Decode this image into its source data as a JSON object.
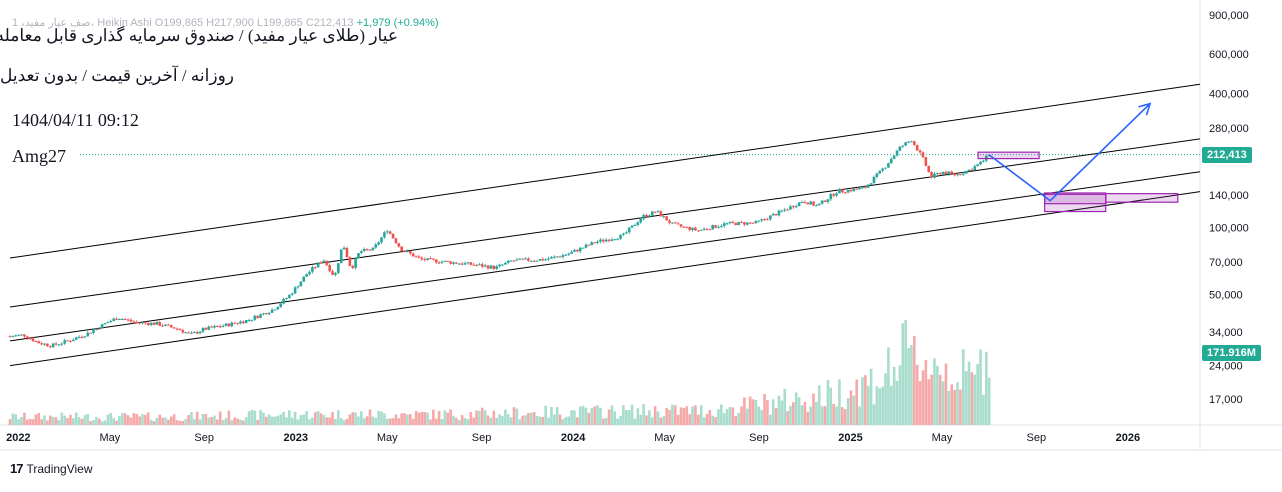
{
  "header": {
    "ohlc_text": "1 ،صف عيار مفيد، Heikin Ashi  O199,865  H217,900  L199,865  C212,413",
    "change_text": "+1,979 (+0.94%)",
    "title": "عيار (طلای عيار مفيد) / صندوق سرمايه گذاری قابل معامله",
    "subtitle": "روزانه / آخرين قيمت / بدون تعديل",
    "datetime": "1404/04/11 09:12",
    "author": "Amg27"
  },
  "branding": {
    "logo": "17",
    "name": "TradingView"
  },
  "colors": {
    "up": "#26a69a",
    "down": "#ef5350",
    "vol_up": "#a8dccd",
    "vol_down": "#f5a9a8",
    "tag": "#22ab94",
    "arrow": "#2962ff",
    "box": "#9c27b0",
    "channel": "#000000"
  },
  "chart_data": {
    "type": "candlestick",
    "scale": "log",
    "price_axis": {
      "ticks": [
        17000,
        24000,
        34000,
        50000,
        70000,
        100000,
        140000,
        200000,
        280000,
        400000,
        600000,
        900000
      ],
      "tick_labels": [
        "17,000",
        "24,000",
        "34,000",
        "50,000",
        "70,000",
        "100,000",
        "140,000",
        "",
        "280,000",
        "400,000",
        "600,000",
        "900,000"
      ]
    },
    "time_axis": {
      "labels": [
        {
          "t": 2022.0,
          "text": "2022",
          "bold": true
        },
        {
          "t": 2022.33,
          "text": "May",
          "bold": false
        },
        {
          "t": 2022.67,
          "text": "Sep",
          "bold": false
        },
        {
          "t": 2023.0,
          "text": "2023",
          "bold": true
        },
        {
          "t": 2023.33,
          "text": "May",
          "bold": false
        },
        {
          "t": 2023.67,
          "text": "Sep",
          "bold": false
        },
        {
          "t": 2024.0,
          "text": "2024",
          "bold": true
        },
        {
          "t": 2024.33,
          "text": "May",
          "bold": false
        },
        {
          "t": 2024.67,
          "text": "Sep",
          "bold": false
        },
        {
          "t": 2025.0,
          "text": "2025",
          "bold": true
        },
        {
          "t": 2025.33,
          "text": "May",
          "bold": false
        },
        {
          "t": 2025.67,
          "text": "Sep",
          "bold": false
        },
        {
          "t": 2026.0,
          "text": "2026",
          "bold": true
        }
      ]
    },
    "last_price": 212413,
    "last_price_label": "212,413",
    "volume_label": "171.916M",
    "price_path": [
      [
        2021.97,
        32500
      ],
      [
        2022.02,
        33000
      ],
      [
        2022.07,
        30500
      ],
      [
        2022.12,
        29500
      ],
      [
        2022.18,
        31000
      ],
      [
        2022.25,
        33500
      ],
      [
        2022.32,
        37500
      ],
      [
        2022.36,
        39500
      ],
      [
        2022.42,
        37500
      ],
      [
        2022.5,
        37000
      ],
      [
        2022.58,
        35000
      ],
      [
        2022.62,
        33000
      ],
      [
        2022.67,
        35000
      ],
      [
        2022.75,
        36500
      ],
      [
        2022.83,
        38500
      ],
      [
        2022.92,
        43000
      ],
      [
        2022.98,
        50000
      ],
      [
        2023.04,
        62000
      ],
      [
        2023.1,
        72000
      ],
      [
        2023.14,
        60000
      ],
      [
        2023.17,
        85000
      ],
      [
        2023.2,
        65000
      ],
      [
        2023.23,
        78000
      ],
      [
        2023.28,
        80000
      ],
      [
        2023.33,
        98000
      ],
      [
        2023.38,
        80000
      ],
      [
        2023.45,
        72000
      ],
      [
        2023.55,
        70000
      ],
      [
        2023.65,
        68000
      ],
      [
        2023.72,
        66000
      ],
      [
        2023.78,
        71000
      ],
      [
        2023.9,
        72000
      ],
      [
        2023.98,
        76000
      ],
      [
        2024.08,
        86000
      ],
      [
        2024.18,
        92000
      ],
      [
        2024.25,
        112000
      ],
      [
        2024.3,
        118000
      ],
      [
        2024.36,
        103000
      ],
      [
        2024.45,
        97000
      ],
      [
        2024.55,
        104000
      ],
      [
        2024.66,
        105000
      ],
      [
        2024.75,
        118000
      ],
      [
        2024.83,
        132000
      ],
      [
        2024.88,
        125000
      ],
      [
        2024.95,
        145000
      ],
      [
        2025.05,
        150000
      ],
      [
        2025.12,
        185000
      ],
      [
        2025.18,
        230000
      ],
      [
        2025.22,
        248000
      ],
      [
        2025.26,
        205000
      ],
      [
        2025.29,
        168000
      ],
      [
        2025.33,
        178000
      ],
      [
        2025.38,
        172000
      ],
      [
        2025.43,
        182000
      ],
      [
        2025.47,
        195000
      ],
      [
        2025.5,
        212413
      ]
    ],
    "volume_profile": [
      [
        2021.97,
        0.1
      ],
      [
        2022.5,
        0.1
      ],
      [
        2023.0,
        0.13
      ],
      [
        2023.5,
        0.13
      ],
      [
        2024.0,
        0.16
      ],
      [
        2024.5,
        0.18
      ],
      [
        2024.9,
        0.35
      ],
      [
        2025.1,
        0.55
      ],
      [
        2025.2,
        0.85
      ],
      [
        2025.3,
        0.75
      ],
      [
        2025.45,
        0.55
      ],
      [
        2025.5,
        0.95
      ]
    ],
    "channel_lines": [
      {
        "t1": 2021.97,
        "p1": 73000,
        "t2": 2026.26,
        "p2": 440000
      },
      {
        "t1": 2021.97,
        "p1": 44000,
        "t2": 2026.26,
        "p2": 250000
      },
      {
        "t1": 2021.97,
        "p1": 31000,
        "t2": 2026.26,
        "p2": 178000
      },
      {
        "t1": 2021.97,
        "p1": 24000,
        "t2": 2026.26,
        "p2": 145000
      }
    ],
    "projection_arrows": [
      {
        "points": [
          [
            2025.5,
            212000
          ],
          [
            2025.72,
            132000
          ],
          [
            2026.08,
            360000
          ]
        ]
      }
    ],
    "zones": [
      {
        "t1": 2025.46,
        "t2": 2025.68,
        "p1": 218000,
        "p2": 204000
      },
      {
        "t1": 2025.7,
        "t2": 2025.92,
        "p1": 143000,
        "p2": 118000
      },
      {
        "t1": 2025.92,
        "t2": 2026.18,
        "p1": 142000,
        "p2": 130000
      },
      {
        "t1": 2025.7,
        "t2": 2025.92,
        "p1": 141000,
        "p2": 128000
      }
    ]
  }
}
